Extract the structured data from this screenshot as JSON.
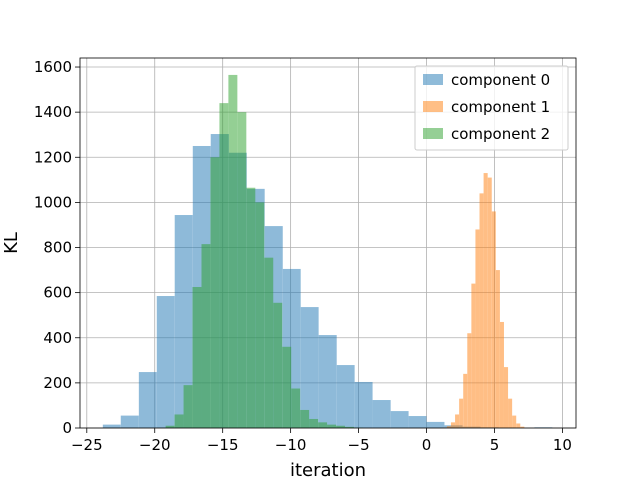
{
  "chart_data": {
    "type": "histogram",
    "x_label": "iteration",
    "y_label": "KL",
    "xlim": [
      -25.5,
      11.0
    ],
    "ylim": [
      0,
      1640
    ],
    "xticks": [
      {
        "value": -25,
        "label": "−25"
      },
      {
        "value": -20,
        "label": "−20"
      },
      {
        "value": -15,
        "label": "−15"
      },
      {
        "value": -10,
        "label": "−10"
      },
      {
        "value": -5,
        "label": "−5"
      },
      0,
      5,
      10
    ],
    "yticks": [
      0,
      200,
      400,
      600,
      800,
      1000,
      1200,
      1400,
      1600
    ],
    "grid": true,
    "legend": "upper right",
    "alpha": 0.5,
    "series": [
      {
        "name": "component 0",
        "color": "#1f77b4",
        "bins": [
          -23.82,
          -22.5,
          -21.17,
          -19.85,
          -18.53,
          -17.2,
          -15.88,
          -14.55,
          -13.23,
          -11.91,
          -10.58,
          -9.26,
          -7.94,
          -6.61,
          -5.29,
          -3.97,
          -2.64,
          -1.32,
          0.0,
          1.32,
          2.65,
          3.97,
          5.29,
          6.62,
          7.94,
          9.26
        ],
        "values": [
          15,
          55,
          248,
          585,
          944,
          1250,
          1303,
          1220,
          1060,
          895,
          705,
          536,
          412,
          279,
          204,
          124,
          75,
          53,
          27,
          12,
          6,
          3,
          1,
          0,
          3
        ]
      },
      {
        "name": "component 1",
        "color": "#ff7f0e",
        "bins": [
          1.2,
          1.5,
          1.8,
          2.1,
          2.4,
          2.7,
          3.0,
          3.3,
          3.6,
          3.9,
          4.2,
          4.5,
          4.8,
          5.1,
          5.4,
          5.7,
          6.0,
          6.3,
          6.6,
          6.9,
          7.2
        ],
        "values": [
          2,
          8,
          25,
          60,
          130,
          240,
          420,
          640,
          880,
          1040,
          1130,
          1110,
          960,
          700,
          470,
          270,
          130,
          55,
          20,
          6
        ]
      },
      {
        "name": "component 2",
        "color": "#2ca02c",
        "bins": [
          -19.2,
          -18.54,
          -17.88,
          -17.22,
          -16.56,
          -15.9,
          -15.24,
          -14.58,
          -13.92,
          -13.26,
          -12.6,
          -11.94,
          -11.28,
          -10.62,
          -9.96,
          -9.3,
          -8.64,
          -7.98,
          -7.32,
          -6.66,
          -6.0,
          -5.34,
          -4.68
        ],
        "values": [
          10,
          60,
          190,
          625,
          815,
          1200,
          1440,
          1565,
          1400,
          1065,
          1000,
          755,
          555,
          360,
          175,
          80,
          40,
          25,
          15,
          10,
          5,
          2
        ]
      }
    ]
  }
}
